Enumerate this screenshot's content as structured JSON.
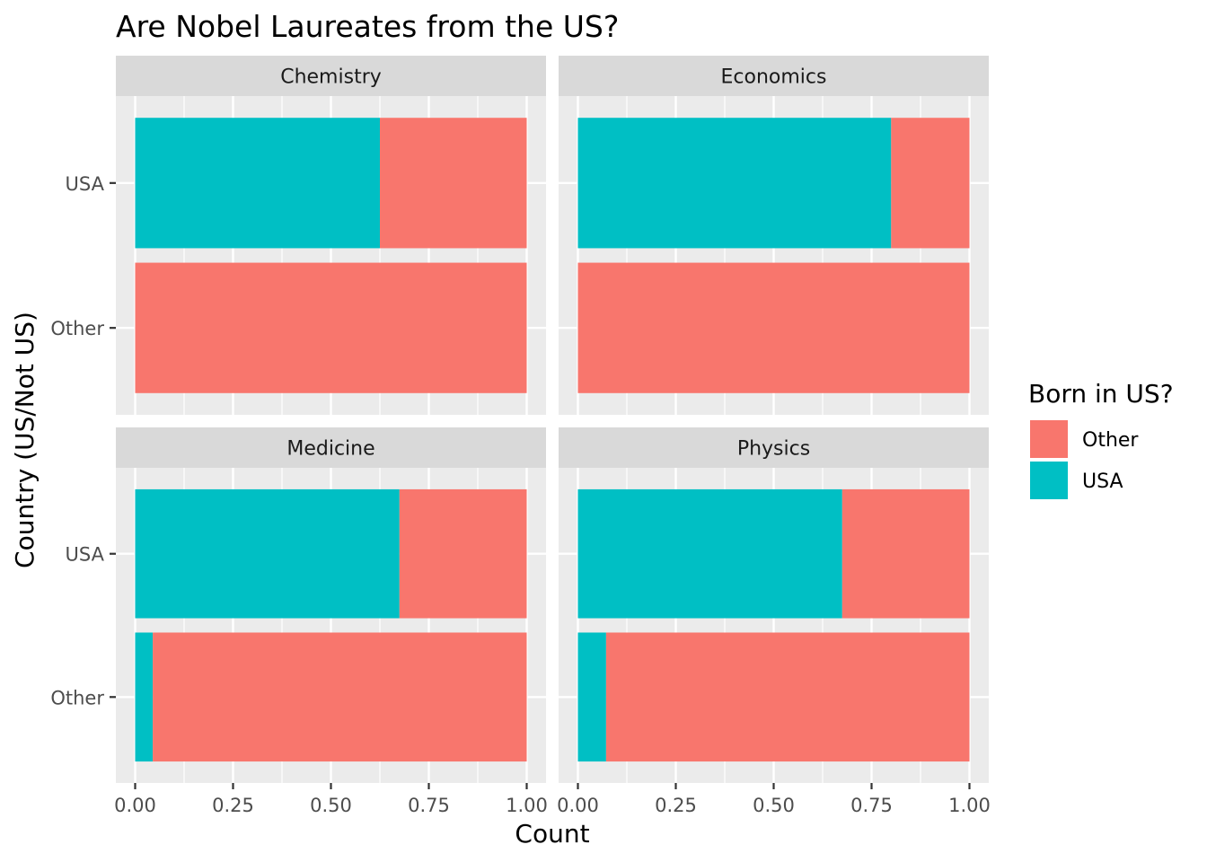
{
  "chart_data": {
    "type": "bar",
    "orientation": "horizontal",
    "stacked": true,
    "title": "Are Nobel Laureates from the US?",
    "xlabel": "Count",
    "ylabel": "Country (US/Not US)",
    "xlim": [
      0,
      1
    ],
    "x_ticks": [
      "0.00",
      "0.25",
      "0.50",
      "0.75",
      "1.00"
    ],
    "categories": [
      "USA",
      "Other"
    ],
    "grid": true,
    "legend": {
      "title": "Born in US?",
      "position": "right",
      "entries": [
        {
          "label": "Other",
          "color": "#F8766D"
        },
        {
          "label": "USA",
          "color": "#00BFC4"
        }
      ]
    },
    "facets": [
      {
        "name": "Chemistry",
        "series": [
          {
            "name": "USA",
            "values": [
              0.625,
              0.0
            ]
          },
          {
            "name": "Other",
            "values": [
              0.375,
              1.0
            ]
          }
        ]
      },
      {
        "name": "Economics",
        "series": [
          {
            "name": "USA",
            "values": [
              0.8,
              0.0
            ]
          },
          {
            "name": "Other",
            "values": [
              0.2,
              1.0
            ]
          }
        ]
      },
      {
        "name": "Medicine",
        "series": [
          {
            "name": "USA",
            "values": [
              0.675,
              0.045
            ]
          },
          {
            "name": "Other",
            "values": [
              0.325,
              0.955
            ]
          }
        ]
      },
      {
        "name": "Physics",
        "series": [
          {
            "name": "USA",
            "values": [
              0.675,
              0.072
            ]
          },
          {
            "name": "Other",
            "values": [
              0.325,
              0.928
            ]
          }
        ]
      }
    ]
  },
  "colors": {
    "USA": "#00BFC4",
    "Other": "#F8766D",
    "panel_bg": "#EBEBEB",
    "strip_bg": "#D9D9D9",
    "grid_major": "#FFFFFF"
  }
}
